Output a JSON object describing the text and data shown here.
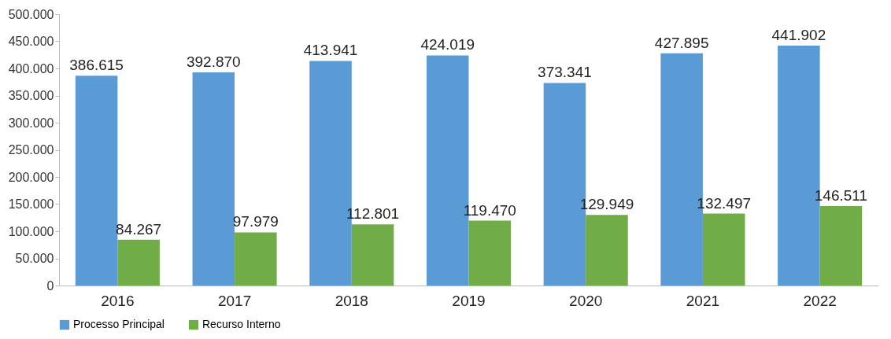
{
  "chart_data": {
    "type": "bar",
    "categories": [
      "2016",
      "2017",
      "2018",
      "2019",
      "2020",
      "2021",
      "2022"
    ],
    "series": [
      {
        "name": "Processo Principal",
        "color": "#5b9bd5",
        "values": [
          386615,
          392870,
          413941,
          424019,
          373341,
          427895,
          441902
        ],
        "value_labels": [
          "386.615",
          "392.870",
          "413.941",
          "424.019",
          "373.341",
          "427.895",
          "441.902"
        ]
      },
      {
        "name": "Recurso Interno",
        "color": "#70ad47",
        "values": [
          84267,
          97979,
          112801,
          119470,
          129949,
          132497,
          146511
        ],
        "value_labels": [
          "84.267",
          "97.979",
          "112.801",
          "119.470",
          "129.949",
          "132.497",
          "146.511"
        ]
      }
    ],
    "ylim": [
      0,
      500000
    ],
    "yticks": [
      0,
      {
        "value": 50000,
        "label": "50.000"
      },
      {
        "value": 100000,
        "label": "100.000"
      },
      {
        "value": 150000,
        "label": "150.000"
      },
      {
        "value": 200000,
        "label": "200.000"
      },
      {
        "value": 250000,
        "label": "250.000"
      },
      {
        "value": 300000,
        "label": "300.000"
      },
      {
        "value": 350000,
        "label": "350.000"
      },
      {
        "value": 400000,
        "label": "400.000"
      },
      {
        "value": 450000,
        "label": "450.000"
      },
      {
        "value": 500000,
        "label": "500.000"
      }
    ],
    "legend": "bottom"
  }
}
